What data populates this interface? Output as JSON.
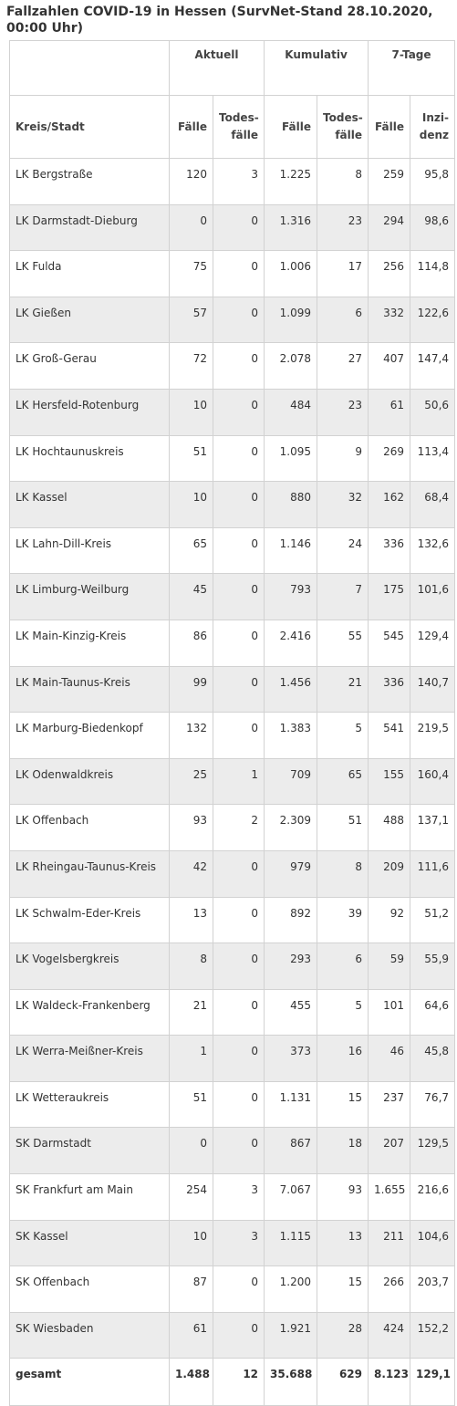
{
  "title": "Fallzahlen COVID-19 in Hessen (SurvNet-Stand 28.10.2020, 00:00 Uhr)",
  "groups": {
    "aktuell": "Aktuell",
    "kumulativ": "Kumulativ",
    "sieben_tage": "7-Tage"
  },
  "columns": {
    "kreis": "Kreis/Stadt",
    "faelle": "Fälle",
    "todes_a": "Todes-",
    "todes_b": "fälle",
    "inzi_a": "Inzi-",
    "inzi_b": "denz"
  },
  "rows": [
    {
      "name": "LK Bergstraße",
      "akt_faelle": "120",
      "akt_todes": "3",
      "kum_faelle": "1.225",
      "kum_todes": "8",
      "tage_faelle": "259",
      "inzidenz": "95,8"
    },
    {
      "name": "LK Darmstadt-Dieburg",
      "akt_faelle": "0",
      "akt_todes": "0",
      "kum_faelle": "1.316",
      "kum_todes": "23",
      "tage_faelle": "294",
      "inzidenz": "98,6"
    },
    {
      "name": "LK Fulda",
      "akt_faelle": "75",
      "akt_todes": "0",
      "kum_faelle": "1.006",
      "kum_todes": "17",
      "tage_faelle": "256",
      "inzidenz": "114,8"
    },
    {
      "name": "LK Gießen",
      "akt_faelle": "57",
      "akt_todes": "0",
      "kum_faelle": "1.099",
      "kum_todes": "6",
      "tage_faelle": "332",
      "inzidenz": "122,6"
    },
    {
      "name": "LK Groß-Gerau",
      "akt_faelle": "72",
      "akt_todes": "0",
      "kum_faelle": "2.078",
      "kum_todes": "27",
      "tage_faelle": "407",
      "inzidenz": "147,4"
    },
    {
      "name": "LK Hersfeld-Rotenburg",
      "akt_faelle": "10",
      "akt_todes": "0",
      "kum_faelle": "484",
      "kum_todes": "23",
      "tage_faelle": "61",
      "inzidenz": "50,6"
    },
    {
      "name": "LK Hochtaunuskreis",
      "akt_faelle": "51",
      "akt_todes": "0",
      "kum_faelle": "1.095",
      "kum_todes": "9",
      "tage_faelle": "269",
      "inzidenz": "113,4"
    },
    {
      "name": "LK Kassel",
      "akt_faelle": "10",
      "akt_todes": "0",
      "kum_faelle": "880",
      "kum_todes": "32",
      "tage_faelle": "162",
      "inzidenz": "68,4"
    },
    {
      "name": "LK Lahn-Dill-Kreis",
      "akt_faelle": "65",
      "akt_todes": "0",
      "kum_faelle": "1.146",
      "kum_todes": "24",
      "tage_faelle": "336",
      "inzidenz": "132,6"
    },
    {
      "name": "LK Limburg-Weilburg",
      "akt_faelle": "45",
      "akt_todes": "0",
      "kum_faelle": "793",
      "kum_todes": "7",
      "tage_faelle": "175",
      "inzidenz": "101,6"
    },
    {
      "name": "LK Main-Kinzig-Kreis",
      "akt_faelle": "86",
      "akt_todes": "0",
      "kum_faelle": "2.416",
      "kum_todes": "55",
      "tage_faelle": "545",
      "inzidenz": "129,4"
    },
    {
      "name": "LK Main-Taunus-Kreis",
      "akt_faelle": "99",
      "akt_todes": "0",
      "kum_faelle": "1.456",
      "kum_todes": "21",
      "tage_faelle": "336",
      "inzidenz": "140,7"
    },
    {
      "name": "LK Marburg-Biedenkopf",
      "akt_faelle": "132",
      "akt_todes": "0",
      "kum_faelle": "1.383",
      "kum_todes": "5",
      "tage_faelle": "541",
      "inzidenz": "219,5"
    },
    {
      "name": "LK Odenwaldkreis",
      "akt_faelle": "25",
      "akt_todes": "1",
      "kum_faelle": "709",
      "kum_todes": "65",
      "tage_faelle": "155",
      "inzidenz": "160,4"
    },
    {
      "name": "LK Offenbach",
      "akt_faelle": "93",
      "akt_todes": "2",
      "kum_faelle": "2.309",
      "kum_todes": "51",
      "tage_faelle": "488",
      "inzidenz": "137,1"
    },
    {
      "name": "LK Rheingau-Taunus-Kreis",
      "akt_faelle": "42",
      "akt_todes": "0",
      "kum_faelle": "979",
      "kum_todes": "8",
      "tage_faelle": "209",
      "inzidenz": "111,6"
    },
    {
      "name": "LK Schwalm-Eder-Kreis",
      "akt_faelle": "13",
      "akt_todes": "0",
      "kum_faelle": "892",
      "kum_todes": "39",
      "tage_faelle": "92",
      "inzidenz": "51,2"
    },
    {
      "name": "LK Vogelsbergkreis",
      "akt_faelle": "8",
      "akt_todes": "0",
      "kum_faelle": "293",
      "kum_todes": "6",
      "tage_faelle": "59",
      "inzidenz": "55,9"
    },
    {
      "name": "LK Waldeck-Frankenberg",
      "akt_faelle": "21",
      "akt_todes": "0",
      "kum_faelle": "455",
      "kum_todes": "5",
      "tage_faelle": "101",
      "inzidenz": "64,6"
    },
    {
      "name": "LK Werra-Meißner-Kreis",
      "akt_faelle": "1",
      "akt_todes": "0",
      "kum_faelle": "373",
      "kum_todes": "16",
      "tage_faelle": "46",
      "inzidenz": "45,8"
    },
    {
      "name": "LK Wetteraukreis",
      "akt_faelle": "51",
      "akt_todes": "0",
      "kum_faelle": "1.131",
      "kum_todes": "15",
      "tage_faelle": "237",
      "inzidenz": "76,7"
    },
    {
      "name": "SK Darmstadt",
      "akt_faelle": "0",
      "akt_todes": "0",
      "kum_faelle": "867",
      "kum_todes": "18",
      "tage_faelle": "207",
      "inzidenz": "129,5"
    },
    {
      "name": "SK Frankfurt am Main",
      "akt_faelle": "254",
      "akt_todes": "3",
      "kum_faelle": "7.067",
      "kum_todes": "93",
      "tage_faelle": "1.655",
      "inzidenz": "216,6"
    },
    {
      "name": "SK Kassel",
      "akt_faelle": "10",
      "akt_todes": "3",
      "kum_faelle": "1.115",
      "kum_todes": "13",
      "tage_faelle": "211",
      "inzidenz": "104,6"
    },
    {
      "name": "SK Offenbach",
      "akt_faelle": "87",
      "akt_todes": "0",
      "kum_faelle": "1.200",
      "kum_todes": "15",
      "tage_faelle": "266",
      "inzidenz": "203,7"
    },
    {
      "name": "SK Wiesbaden",
      "akt_faelle": "61",
      "akt_todes": "0",
      "kum_faelle": "1.921",
      "kum_todes": "28",
      "tage_faelle": "424",
      "inzidenz": "152,2"
    }
  ],
  "total": {
    "name": "gesamt",
    "akt_faelle": "1.488",
    "akt_todes": "12",
    "kum_faelle": "35.688",
    "kum_todes": "629",
    "tage_faelle": "8.123",
    "inzidenz": "129,1"
  }
}
